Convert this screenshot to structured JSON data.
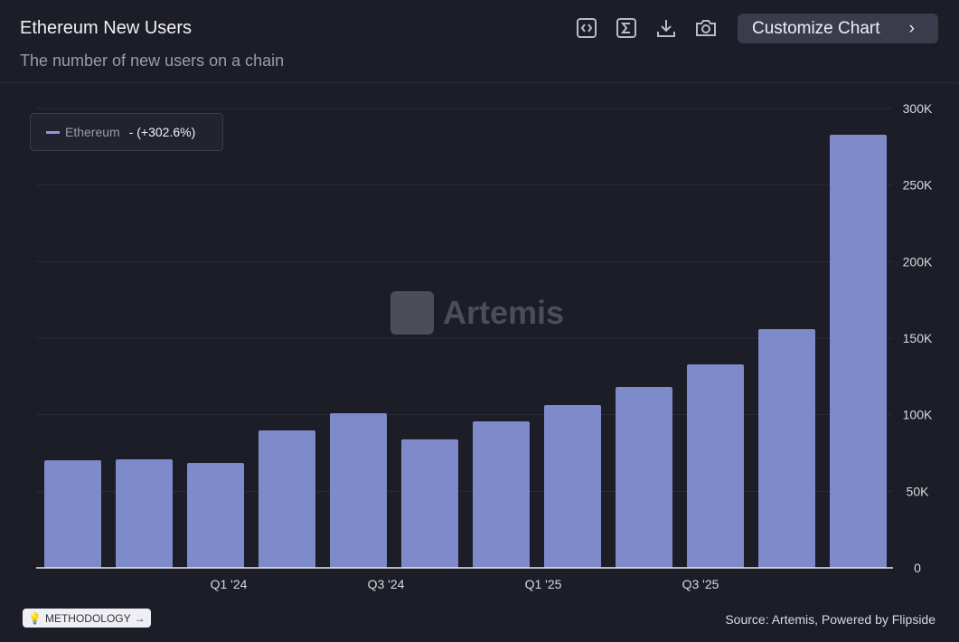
{
  "header": {
    "title": "Ethereum New Users",
    "subtitle": "The number of new users on a chain",
    "customize_label": "Customize Chart",
    "icons": [
      "embed-code-icon",
      "sigma-icon",
      "download-icon",
      "camera-icon"
    ]
  },
  "legend": {
    "name": "Ethereum",
    "change": "- (+302.6%)",
    "color": "#8d97dd"
  },
  "watermark": "Artemis",
  "footer": {
    "methodology": "METHODOLOGY",
    "source": "Source: Artemis, Powered by Flipside"
  },
  "chart_data": {
    "type": "bar",
    "series": [
      {
        "name": "Ethereum",
        "values": [
          70300,
          70900,
          68500,
          89800,
          101000,
          83900,
          95700,
          106300,
          118100,
          132900,
          155900,
          282900
        ]
      }
    ],
    "x_tick_labels": [
      "Q1 '24",
      "Q3 '24",
      "Q1 '25",
      "Q3 '25"
    ],
    "y_tick_labels": [
      "0",
      "50K",
      "100K",
      "150K",
      "200K",
      "250K",
      "300K"
    ],
    "ylim": [
      0,
      300000
    ],
    "y_axis_side": "right",
    "grid": true,
    "bar_color": "#7f8acb",
    "legend_placement": "top-left"
  }
}
